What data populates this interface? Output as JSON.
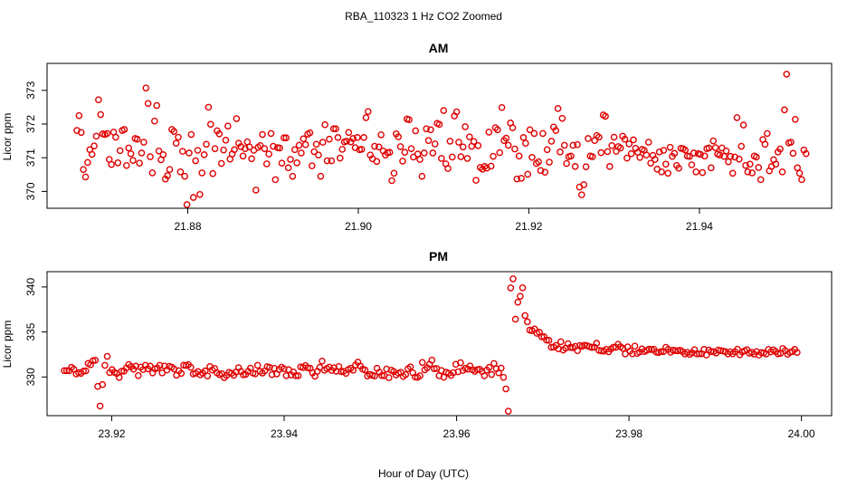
{
  "figure": {
    "title": "RBA_110323  1 Hz CO2 Zoomed",
    "xlabel": "Hour of Day (UTC)"
  },
  "style": {
    "point_color": "#e00000",
    "axis_color": "#000000"
  },
  "chart_data": [
    {
      "id": "am",
      "type": "scatter",
      "title": "AM",
      "xlabel": "Hour of Day (UTC)",
      "ylabel": "Licor ppm",
      "xlim": [
        21.8635,
        21.9555
      ],
      "ylim": [
        369.5,
        373.8
      ],
      "xticks": [
        21.88,
        21.9,
        21.92,
        21.94
      ],
      "xtick_labels": [
        "21.88",
        "21.90",
        "21.92",
        "21.94"
      ],
      "yticks": [
        370,
        371,
        372,
        373
      ],
      "ytick_labels": [
        "370",
        "371",
        "372",
        "373"
      ],
      "x_start": 21.867,
      "x_end": 21.9525,
      "n_points": 330,
      "y_values": [
        371.81,
        372.25,
        371.75,
        370.65,
        370.43,
        370.86,
        371.24,
        371.1,
        371.35,
        371.64,
        372.72,
        372.28,
        371.71,
        371.69,
        371.72,
        370.95,
        370.8,
        371.76,
        371.61,
        370.85,
        371.21,
        371.81,
        371.84,
        370.77,
        371.29,
        371.12,
        370.92,
        371.57,
        371.55,
        370.84,
        371.14,
        371.46,
        373.07,
        372.61,
        371.03,
        370.55,
        372.09,
        372.55,
        371.2,
        370.94,
        371.09,
        370.37,
        370.47,
        370.65,
        371.84,
        371.78,
        371.43,
        371.61,
        370.58,
        371.19,
        370.45,
        369.61,
        371.14,
        371.69,
        369.82,
        370.91,
        371.22,
        369.91,
        370.55,
        371.09,
        371.4,
        372.5,
        371.99,
        370.53,
        371.27,
        371.8,
        371.71,
        370.83,
        371.23,
        371.52,
        371.94,
        370.96,
        371.11,
        371.24,
        372.16,
        371.43,
        371.33,
        371.05,
        371.27,
        371.47,
        371.32,
        370.97,
        371.22,
        370.04,
        371.31,
        371.36,
        371.69,
        371.27,
        370.82,
        371.11,
        371.72,
        371.34,
        370.35,
        371.3,
        371.29,
        370.84,
        371.59,
        371.59,
        370.7,
        370.95,
        370.45,
        371.24,
        370.85,
        371.37,
        371.14,
        371.56,
        371.39,
        371.7,
        371.74,
        370.76,
        371.18,
        371.4,
        371.08,
        370.45,
        371.46,
        371.98,
        370.91,
        371.55,
        370.91,
        371.86,
        371.86,
        371.6,
        370.99,
        371.25,
        371.47,
        371.49,
        371.75,
        371.47,
        371.57,
        371.3,
        371.6,
        371.24,
        371.25,
        371.6,
        372.19,
        372.37,
        371.08,
        370.97,
        371.34,
        370.89,
        371.32,
        371.68,
        371.2,
        371.08,
        371.15,
        371.16,
        370.32,
        370.54,
        371.71,
        371.62,
        371.33,
        370.9,
        371.16,
        372.15,
        372.13,
        371.27,
        371.02,
        371.8,
        371.11,
        370.95,
        370.45,
        371.14,
        371.86,
        371.51,
        371.83,
        371.14,
        371.41,
        372.02,
        371.99,
        370.98,
        372.4,
        370.82,
        370.68,
        371.49,
        371.02,
        372.24,
        372.36,
        371.46,
        371.03,
        371.32,
        371.92,
        370.98,
        371.62,
        371.34,
        371.48,
        370.33,
        371.36,
        370.71,
        370.66,
        370.74,
        370.69,
        371.76,
        370.75,
        371.04,
        371.89,
        371.83,
        371.15,
        372.49,
        371.51,
        371.58,
        371.37,
        372.03,
        371.89,
        371.26,
        370.37,
        371.05,
        370.39,
        371.6,
        371.43,
        370.51,
        371.83,
        371.01,
        371.72,
        370.83,
        370.88,
        370.62,
        371.72,
        370.57,
        371.24,
        370.87,
        371.49,
        371.91,
        371.81,
        372.46,
        371.17,
        372.17,
        371.37,
        370.83,
        371.03,
        371.05,
        371.37,
        370.74,
        371.39,
        370.13,
        369.9,
        370.2,
        370.73,
        371.57,
        371.05,
        371.03,
        371.51,
        371.66,
        371.61,
        371.15,
        372.27,
        372.23,
        371.18,
        370.74,
        371.36,
        371.61,
        371.19,
        371.33,
        371.29,
        371.64,
        371.55,
        370.99,
        371.41,
        371.12,
        371.53,
        371.28,
        371.16,
        371.01,
        371.25,
        371.22,
        371.08,
        371.46,
        370.84,
        371.07,
        370.95,
        370.66,
        371.17,
        370.58,
        371.22,
        370.81,
        370.54,
        371.31,
        371.04,
        371.13,
        370.77,
        370.69,
        371.28,
        371.27,
        371.23,
        371.05,
        371.04,
        370.79,
        371.14,
        370.58,
        371.12,
        371.1,
        370.56,
        371.05,
        371.27,
        371.29,
        370.7,
        371.5,
        371.3,
        371.11,
        371.08,
        371.29,
        371.04,
        371.2,
        370.88,
        371.04,
        370.54,
        371.02,
        372.19,
        370.96,
        371.34,
        371.97,
        370.77,
        370.58,
        370.81,
        370.55,
        371.05,
        371.02,
        370.71,
        370.35,
        371.54,
        371.4,
        371.72,
        370.61,
        370.74,
        370.94,
        370.81,
        371.17,
        371.26,
        370.58,
        372.42,
        373.48,
        371.44,
        371.46,
        371.13,
        372.14,
        370.7,
        370.54,
        370.35,
        371.23,
        371.12
      ]
    },
    {
      "id": "pm",
      "type": "scatter",
      "title": "PM",
      "xlabel": "Hour of Day (UTC)",
      "ylabel": "Licor ppm",
      "xlim": [
        23.9125,
        24.0035
      ],
      "ylim": [
        325.7,
        341.7
      ],
      "xticks": [
        23.92,
        23.94,
        23.96,
        23.98,
        24.0
      ],
      "xtick_labels": [
        "23.92",
        "23.94",
        "23.96",
        "23.98",
        "24.00"
      ],
      "yticks": [
        330,
        335,
        340
      ],
      "ytick_labels": [
        "330",
        "335",
        "340"
      ],
      "x_start": 23.9145,
      "x_end": 23.9995,
      "n_points": 308,
      "y_values": [
        330.7,
        330.7,
        330.69,
        331.06,
        330.86,
        330.33,
        330.48,
        330.4,
        330.65,
        330.67,
        331.5,
        331.35,
        331.81,
        331.86,
        328.95,
        326.77,
        329.15,
        331.29,
        332.29,
        330.49,
        330.81,
        330.51,
        330.39,
        329.95,
        330.64,
        330.64,
        330.99,
        331.38,
        331.15,
        330.86,
        331.2,
        330.15,
        331.09,
        330.82,
        331.29,
        330.9,
        331.2,
        330.45,
        330.9,
        330.99,
        331.29,
        330.45,
        331.21,
        330.77,
        331.18,
        331.09,
        330.89,
        330.19,
        330.69,
        330.4,
        331.31,
        331.28,
        331.37,
        331.08,
        330.34,
        330.41,
        330.6,
        330.24,
        330.42,
        330.67,
        330.11,
        331.15,
        330.77,
        330.94,
        330.45,
        330.26,
        330.36,
        329.92,
        330.17,
        330.51,
        330.41,
        330.18,
        330.55,
        331.03,
        330.61,
        330.24,
        330.29,
        330.62,
        330.98,
        330.43,
        330.35,
        331.29,
        330.62,
        330.44,
        330.68,
        331.14,
        331.06,
        330.26,
        330.95,
        330.34,
        330.83,
        331.08,
        330.91,
        330.15,
        330.81,
        330.22,
        330.55,
        330.14,
        330.13,
        331.12,
        331.05,
        331.27,
        331.01,
        330.96,
        330.45,
        330.08,
        330.63,
        331.07,
        331.76,
        330.75,
        330.94,
        331.09,
        330.72,
        331.02,
        330.64,
        331.16,
        330.59,
        330.63,
        330.4,
        330.82,
        330.97,
        330.75,
        331.33,
        331.64,
        331.21,
        330.87,
        330.78,
        330.11,
        330.28,
        330.18,
        330.11,
        330.96,
        330.53,
        330.16,
        330.15,
        330.88,
        329.92,
        330.75,
        330.6,
        330.22,
        330.43,
        330.51,
        330.06,
        330.26,
        330.91,
        331.12,
        330.46,
        329.99,
        329.96,
        330.14,
        331.61,
        330.79,
        331.02,
        331.41,
        331.87,
        330.91,
        330.94,
        330.13,
        330.71,
        329.97,
        330.52,
        330.41,
        330.17,
        330.48,
        331.41,
        330.58,
        331.58,
        330.73,
        330.97,
        330.86,
        331.22,
        330.8,
        330.62,
        330.81,
        330.85,
        330.61,
        330.13,
        330.77,
        331.06,
        330.27,
        331.49,
        330.91,
        330.46,
        330.98,
        329.96,
        328.67,
        326.2,
        339.9,
        340.9,
        336.42,
        338.31,
        338.97,
        339.91,
        336.82,
        336.13,
        335.2,
        335.14,
        335.33,
        334.85,
        334.96,
        334.46,
        334.47,
        334.09,
        334.07,
        333.3,
        333.32,
        333.51,
        333.13,
        333.91,
        332.99,
        333.2,
        333.7,
        333.28,
        333.25,
        333.39,
        332.92,
        333.5,
        333.4,
        333.53,
        333.47,
        333.37,
        333.28,
        333.32,
        333.74,
        332.95,
        332.9,
        332.88,
        333.07,
        332.8,
        333.1,
        333.31,
        333.29,
        333.63,
        333.35,
        333.18,
        332.56,
        333.34,
        332.88,
        332.58,
        333.43,
        332.62,
        332.77,
        333.11,
        332.83,
        332.95,
        333.09,
        333.04,
        333.08,
        332.76,
        332.71,
        332.82,
        332.81,
        333.29,
        333.06,
        332.75,
        332.98,
        332.93,
        332.9,
        332.97,
        332.82,
        332.55,
        332.73,
        332.51,
        332.69,
        333.03,
        332.56,
        332.58,
        332.58,
        333.06,
        332.43,
        332.99,
        332.81,
        332.82,
        332.66,
        332.99,
        332.93,
        332.87,
        332.81,
        332.56,
        332.79,
        332.57,
        332.8,
        333.08,
        332.46,
        332.77,
        332.9,
        333.03,
        332.64,
        332.73,
        332.54,
        332.82,
        332.43,
        332.71,
        332.68,
        332.55,
        333.05,
        332.79,
        333.0,
        332.83,
        332.56,
        332.62,
        333.16,
        332.92,
        332.52,
        332.74,
        332.81,
        333.06,
        332.72
      ]
    }
  ]
}
